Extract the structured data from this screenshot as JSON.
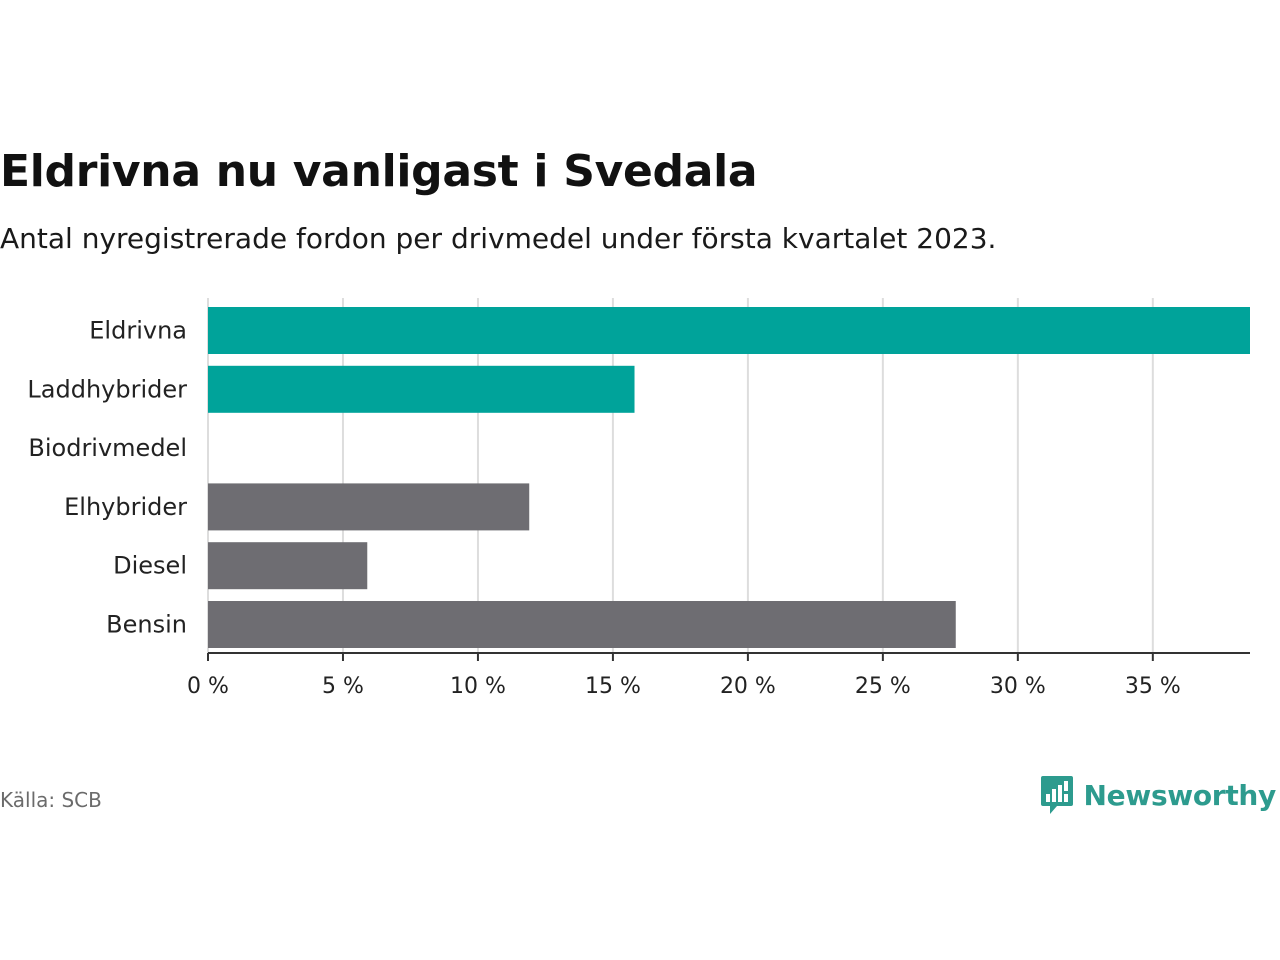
{
  "title": "Eldrivna nu vanligast i Svedala",
  "subtitle": "Antal nyregistrerade fordon per drivmedel under första kvartalet 2023.",
  "source": "Källa: SCB",
  "brand": "Newsworthy",
  "colors": {
    "highlight": "#00A39A",
    "default": "#6E6D72",
    "grid": "#DDDDDD",
    "axis": "#333333",
    "brand": "#2D9B8E"
  },
  "chart_data": {
    "type": "bar",
    "orientation": "horizontal",
    "categories": [
      "Eldrivna",
      "Laddhybrider",
      "Biodrivmedel",
      "Elhybrider",
      "Diesel",
      "Bensin"
    ],
    "values": [
      38.6,
      15.8,
      0,
      11.9,
      5.9,
      27.7
    ],
    "highlight": [
      true,
      true,
      false,
      false,
      false,
      false
    ],
    "xlim": [
      0,
      38.6
    ],
    "ticks": [
      0,
      5,
      10,
      15,
      20,
      25,
      30,
      35
    ],
    "tick_labels": [
      "0 %",
      "5 %",
      "10 %",
      "15 %",
      "20 %",
      "25 %",
      "30 %",
      "35 %"
    ],
    "grid": true
  }
}
